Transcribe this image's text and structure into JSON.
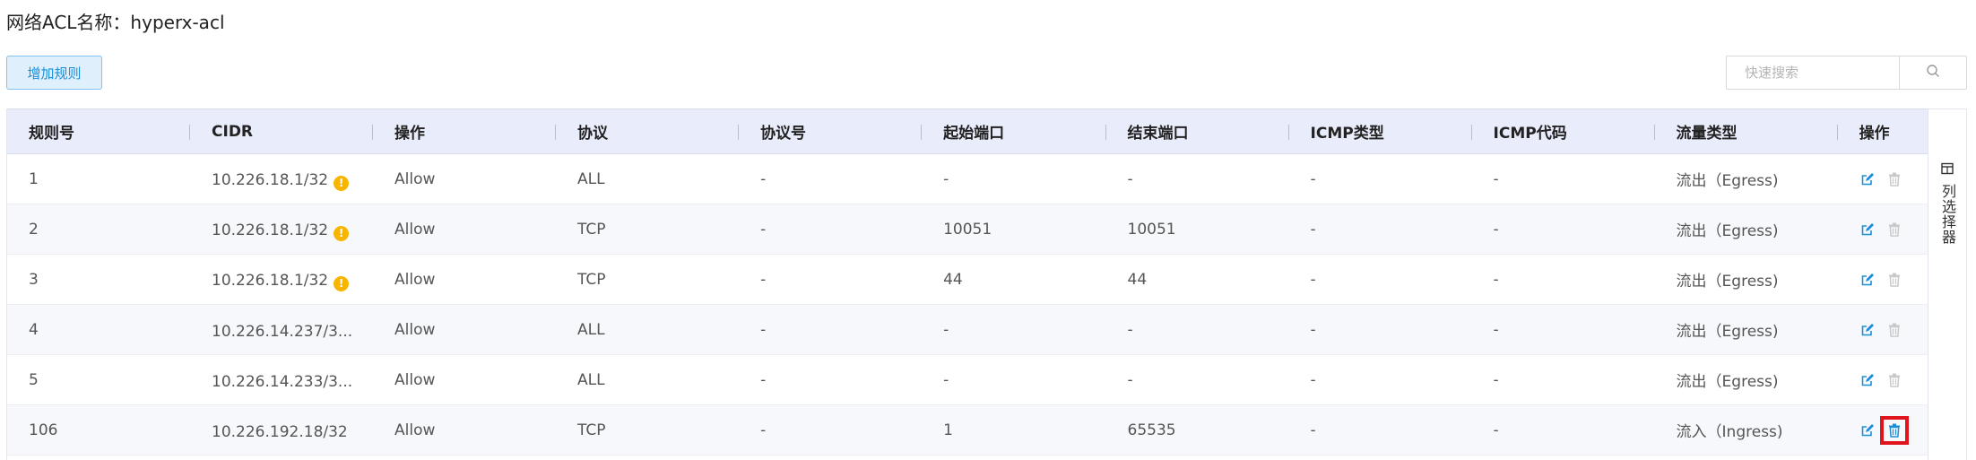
{
  "page": {
    "title": "网络ACL名称：hyperx-acl"
  },
  "toolbar": {
    "add_rule_label": "增加规则",
    "search_placeholder": "快速搜索",
    "search_value": "",
    "search_icon": "search-icon"
  },
  "table": {
    "headers": [
      "规则号",
      "CIDR",
      "操作",
      "协议",
      "协议号",
      "起始端口",
      "结束端口",
      "ICMP类型",
      "ICMP代码",
      "流量类型",
      "操作"
    ],
    "rows": [
      {
        "rule": "1",
        "cidr": "10.226.18.1/32",
        "warn": true,
        "action": "Allow",
        "protocol": "ALL",
        "protocol_no": "-",
        "start_port": "-",
        "end_port": "-",
        "icmp_type": "-",
        "icmp_code": "-",
        "traffic": "流出（Egress)"
      },
      {
        "rule": "2",
        "cidr": "10.226.18.1/32",
        "warn": true,
        "action": "Allow",
        "protocol": "TCP",
        "protocol_no": "-",
        "start_port": "10051",
        "end_port": "10051",
        "icmp_type": "-",
        "icmp_code": "-",
        "traffic": "流出（Egress)"
      },
      {
        "rule": "3",
        "cidr": "10.226.18.1/32",
        "warn": true,
        "action": "Allow",
        "protocol": "TCP",
        "protocol_no": "-",
        "start_port": "44",
        "end_port": "44",
        "icmp_type": "-",
        "icmp_code": "-",
        "traffic": "流出（Egress)"
      },
      {
        "rule": "4",
        "cidr": "10.226.14.237/3...",
        "warn": false,
        "action": "Allow",
        "protocol": "ALL",
        "protocol_no": "-",
        "start_port": "-",
        "end_port": "-",
        "icmp_type": "-",
        "icmp_code": "-",
        "traffic": "流出（Egress)"
      },
      {
        "rule": "5",
        "cidr": "10.226.14.233/3...",
        "warn": false,
        "action": "Allow",
        "protocol": "ALL",
        "protocol_no": "-",
        "start_port": "-",
        "end_port": "-",
        "icmp_type": "-",
        "icmp_code": "-",
        "traffic": "流出（Egress)"
      },
      {
        "rule": "106",
        "cidr": "10.226.192.18/32",
        "warn": false,
        "action": "Allow",
        "protocol": "TCP",
        "protocol_no": "-",
        "start_port": "1",
        "end_port": "65535",
        "icmp_type": "-",
        "icmp_code": "-",
        "traffic": "流入（Ingress)"
      }
    ],
    "warn_glyph": "!",
    "row_icons": [
      "edit-icon",
      "delete-icon"
    ],
    "highlighted_delete_row": 5
  },
  "column_selector": {
    "label": "列选择器",
    "icon": "columns-icon"
  },
  "colors": {
    "accent": "#1a8fd8",
    "header_bg": "#e9edfb",
    "warn": "#f7b500",
    "highlight": "#e0141e"
  }
}
